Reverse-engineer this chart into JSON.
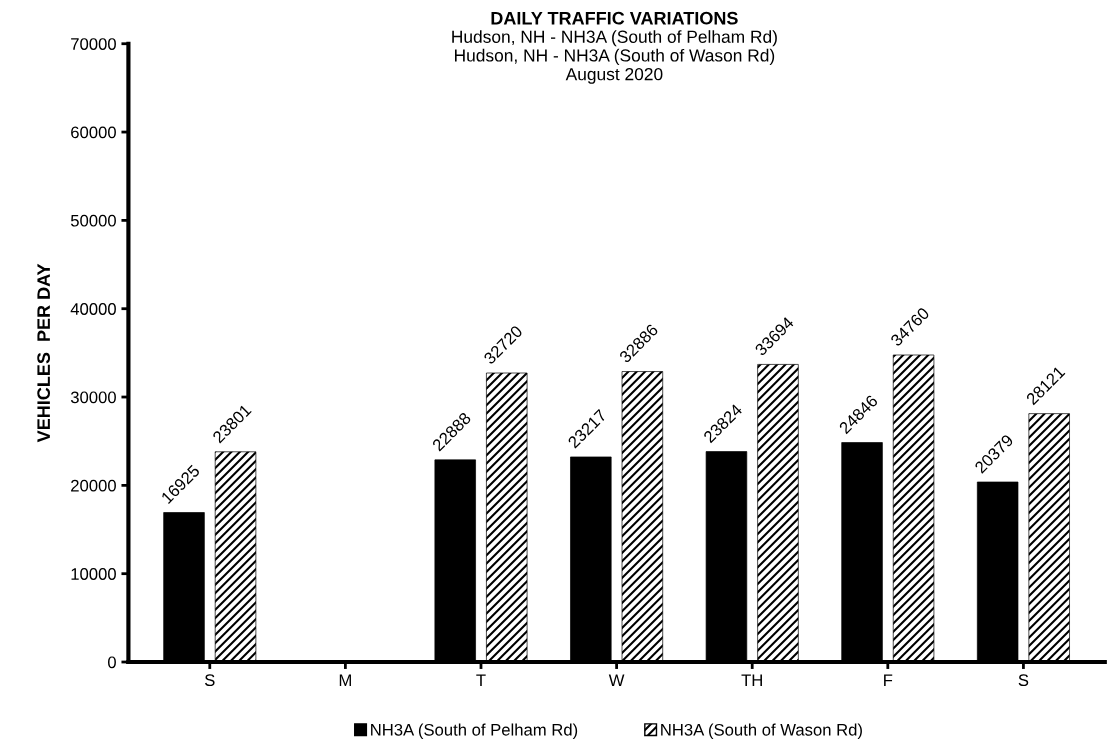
{
  "chart_data": {
    "type": "bar",
    "title": "DAILY TRAFFIC VARIATIONS",
    "subtitle": "Hudson, NH - NH3A (South of Pelham Rd)\nHudson, NH - NH3A (South of Wason Rd)\nAugust 2020",
    "ylabel": "VEHICLES  PER DAY",
    "categories": [
      "S",
      "M",
      "T",
      "W",
      "TH",
      "F",
      "S"
    ],
    "series": [
      {
        "name": "NH3A (South of Pelham Rd)",
        "color": "#000000",
        "values": [
          16925,
          null,
          22888,
          23217,
          23824,
          24846,
          20379
        ]
      },
      {
        "name": "NH3A (South of Wason Rd)",
        "color": "#000000",
        "values": [
          23801,
          null,
          32720,
          32886,
          33694,
          34760,
          28121
        ]
      }
    ],
    "ylim": [
      0,
      70000
    ],
    "yticks": [
      0,
      10000,
      20000,
      30000,
      40000,
      50000,
      60000,
      70000
    ],
    "grid": false,
    "legend": "bottom",
    "data_labels": true
  }
}
